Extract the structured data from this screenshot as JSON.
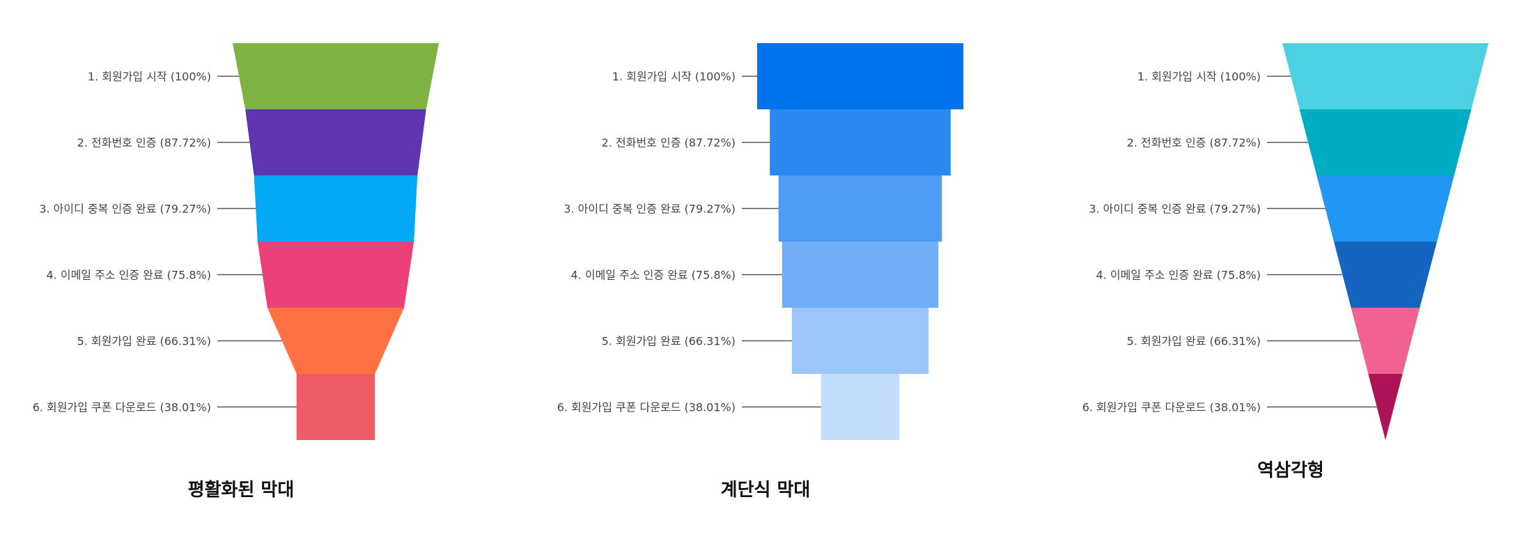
{
  "chart_data": [
    {
      "type": "funnel",
      "variant": "flattened",
      "title": "평활화된 막대",
      "categories": [
        "1. 회원가입 시작 (100%)",
        "2. 전화번호 인증 (87.72%)",
        "3. 아이디 중복 인증 완료 (79.27%)",
        "4. 이메일 주소 인증 완료 (75.8%)",
        "5. 회원가입 완료 (66.31%)",
        "6. 회원가입 쿠폰 다운로드 (38.01%)"
      ],
      "values": [
        100,
        87.72,
        79.27,
        75.8,
        66.31,
        38.01
      ],
      "colors": [
        "#7cb342",
        "#5e35b1",
        "#03a9f4",
        "#ec407a",
        "#ff7043",
        "#ef5b66"
      ]
    },
    {
      "type": "funnel",
      "variant": "stepped",
      "title": "계단식 막대",
      "categories": [
        "1. 회원가입 시작 (100%)",
        "2. 전화번호 인증 (87.72%)",
        "3. 아이디 중복 인증 완료 (79.27%)",
        "4. 이메일 주소 인증 완료 (75.8%)",
        "5. 회원가입 완료 (66.31%)",
        "6. 회원가입 쿠폰 다운로드 (38.01%)"
      ],
      "values": [
        100,
        87.72,
        79.27,
        75.8,
        66.31,
        38.01
      ],
      "colors": [
        "#0273ee",
        "#2b8af2",
        "#4f9cf5",
        "#71aef7",
        "#9ac6f9",
        "#c2ddfb"
      ]
    },
    {
      "type": "funnel",
      "variant": "inverted-triangle",
      "title": "역삼각형",
      "categories": [
        "1. 회원가입 시작 (100%)",
        "2. 전화번호 인증 (87.72%)",
        "3. 아이디 중복 인증 완료 (79.27%)",
        "4. 이메일 주소 인증 완료 (75.8%)",
        "5. 회원가입 완료 (66.31%)",
        "6. 회원가입 쿠폰 다운로드 (38.01%)"
      ],
      "values": [
        100,
        87.72,
        79.27,
        75.8,
        66.31,
        38.01
      ],
      "colors": [
        "#4dd0e1",
        "#00acc1",
        "#2196f3",
        "#1565c0",
        "#f06292",
        "#ad1457"
      ]
    }
  ]
}
